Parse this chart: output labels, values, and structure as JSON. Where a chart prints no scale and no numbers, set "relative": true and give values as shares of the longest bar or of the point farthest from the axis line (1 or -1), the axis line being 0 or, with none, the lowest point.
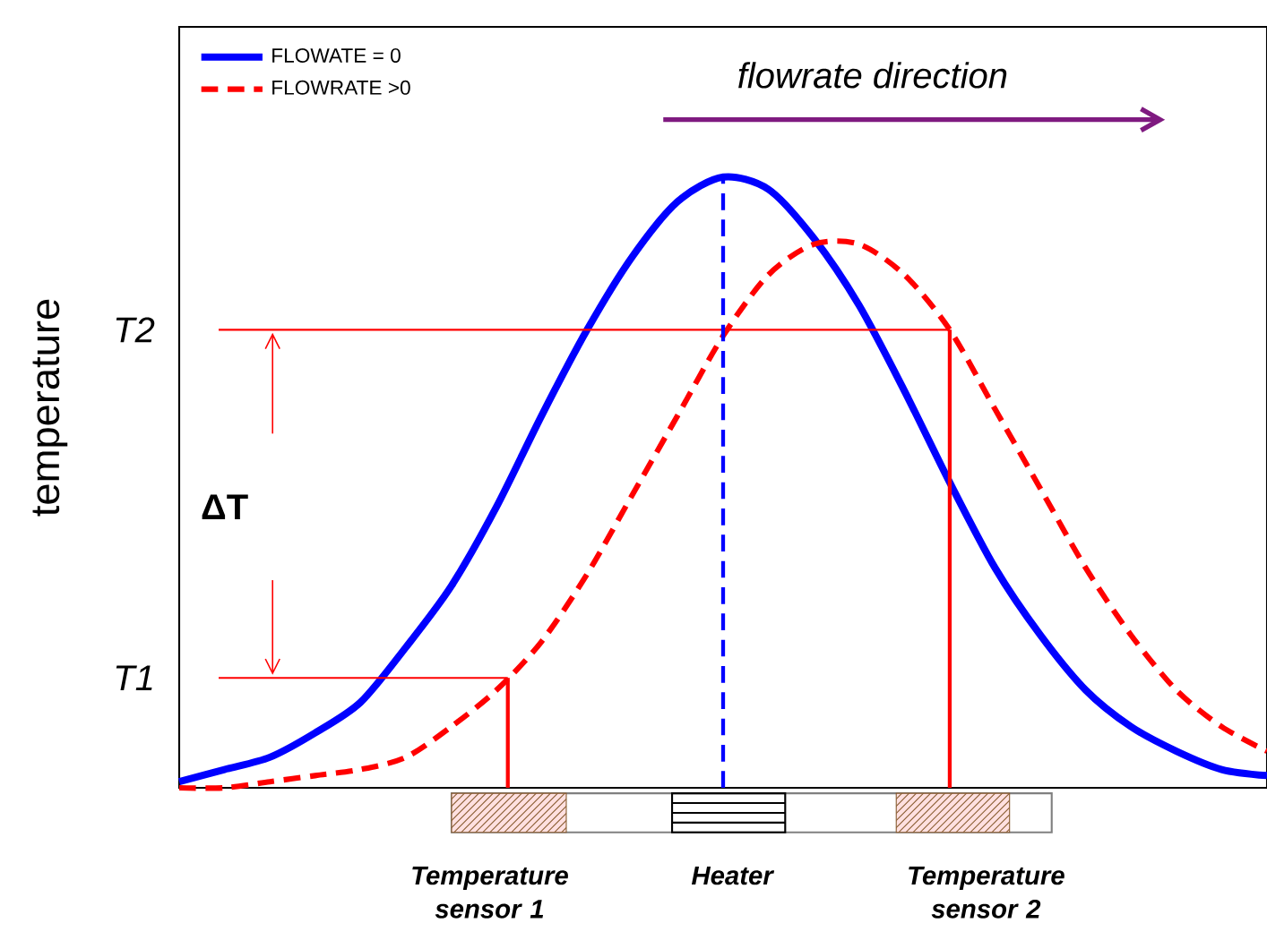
{
  "chart_data": {
    "type": "line",
    "relative": true,
    "ylabel": "temperature",
    "legend": "top left",
    "categories": [
      null,
      null,
      null,
      null,
      null,
      null,
      null,
      null,
      null,
      null,
      null,
      null,
      null,
      null,
      null,
      null,
      null,
      null,
      null,
      null,
      null,
      null,
      null,
      null,
      null
    ],
    "series": [
      {
        "name": "FLOWATE = 0",
        "color": "#0000ff",
        "line_style": "solid",
        "values": [
          0.01,
          0.03,
          0.05,
          0.09,
          0.14,
          0.23,
          0.33,
          0.46,
          0.61,
          0.75,
          0.87,
          0.96,
          1.0,
          0.98,
          0.9,
          0.79,
          0.65,
          0.5,
          0.36,
          0.25,
          0.16,
          0.1,
          0.06,
          0.03,
          0.02
        ]
      },
      {
        "name": "FLOWRATE >0",
        "color": "#ff0000",
        "line_style": "dashed",
        "values": [
          0.0,
          0.0,
          0.01,
          0.02,
          0.03,
          0.05,
          0.1,
          0.16,
          0.24,
          0.35,
          0.48,
          0.61,
          0.74,
          0.84,
          0.89,
          0.89,
          0.84,
          0.75,
          0.62,
          0.49,
          0.36,
          0.25,
          0.16,
          0.1,
          0.06
        ]
      }
    ],
    "ref_lines": [
      {
        "axis": "y",
        "value": 0.18,
        "label": "T1",
        "color": "#ff0000"
      },
      {
        "axis": "y",
        "value": 0.75,
        "label": "T2",
        "color": "#ff0000"
      }
    ],
    "annotations": [
      "ΔT",
      "flowrate direction",
      "Temperature sensor 1",
      "Heater",
      "Temperature sensor 2"
    ]
  }
}
